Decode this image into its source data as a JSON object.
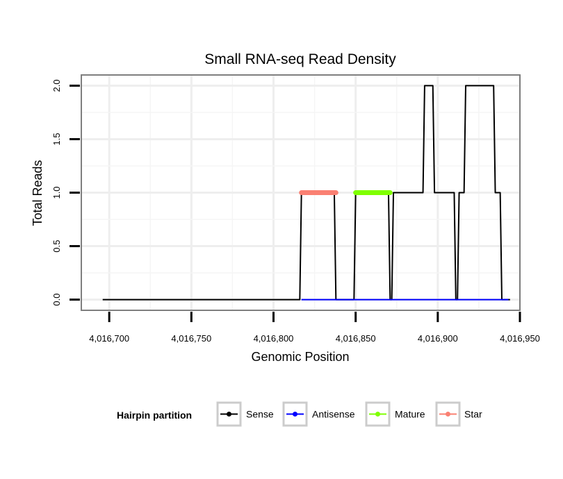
{
  "chart_data": {
    "type": "line",
    "title": "Small RNA-seq Read Density",
    "xlabel": "Genomic Position",
    "ylabel": "Total Reads",
    "xlim": [
      4016683,
      4016950
    ],
    "ylim": [
      -0.1,
      2.1
    ],
    "x_ticks": [
      4016700,
      4016750,
      4016800,
      4016850,
      4016900,
      4016950
    ],
    "x_tick_labels": [
      "4,016,700",
      "4,016,750",
      "4,016,800",
      "4,016,850",
      "4,016,900",
      "4,016,950"
    ],
    "y_ticks": [
      0,
      0.5,
      1,
      1.5,
      2
    ],
    "y_tick_labels": [
      "0.0",
      "0.5",
      "1.0",
      "1.5",
      "2.0"
    ],
    "grid": true,
    "legend": {
      "title": "Hairpin partition",
      "position": "bottom",
      "entries": [
        "Sense",
        "Antisense",
        "Mature",
        "Star"
      ]
    },
    "series": [
      {
        "name": "Sense",
        "color": "#000000",
        "x": [
          4016696,
          4016816,
          4016817,
          4016837,
          4016838,
          4016849,
          4016850,
          4016870,
          4016871,
          4016872,
          4016873,
          4016891,
          4016892,
          4016897,
          4016898,
          4016910,
          4016911,
          4016912,
          4016913,
          4016916,
          4016917,
          4016934,
          4016935,
          4016938,
          4016939,
          4016944
        ],
        "values": [
          0,
          0,
          1,
          1,
          0,
          0,
          1,
          1,
          0,
          0,
          1,
          1,
          2,
          2,
          1,
          1,
          0,
          0,
          1,
          1,
          2,
          2,
          1,
          1,
          0,
          0
        ]
      },
      {
        "name": "Antisense",
        "color": "#0000ff",
        "x": [
          4016817,
          4016943
        ],
        "values": [
          0,
          0
        ]
      },
      {
        "name": "Mature",
        "color": "#7fff00",
        "x": [
          4016850,
          4016871
        ],
        "values": [
          1,
          1
        ]
      },
      {
        "name": "Star",
        "color": "#fa8072",
        "x": [
          4016817,
          4016838
        ],
        "values": [
          1,
          1
        ]
      }
    ]
  }
}
